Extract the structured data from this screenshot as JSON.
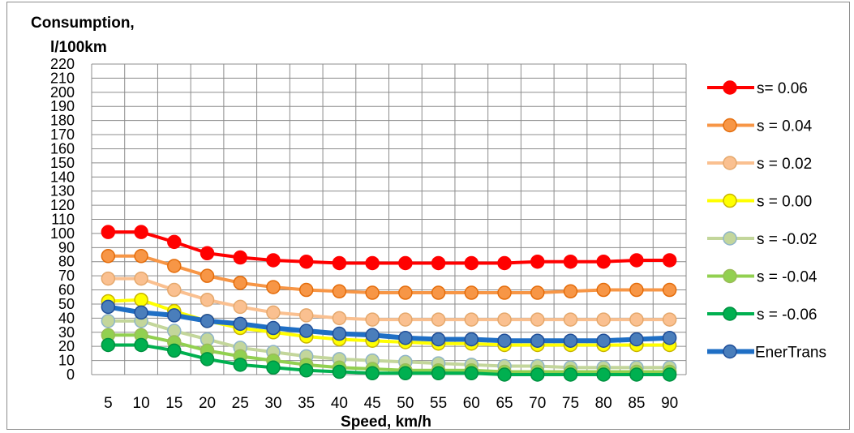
{
  "chart_data": {
    "type": "line",
    "ylabel_line1": "Consumption,",
    "ylabel_line2": "l/100km",
    "xlabel": "Speed, km/h",
    "ylim": [
      0,
      220
    ],
    "yticks": [
      0,
      10,
      20,
      30,
      40,
      50,
      60,
      70,
      80,
      90,
      100,
      110,
      120,
      130,
      140,
      150,
      160,
      170,
      180,
      190,
      200,
      210,
      220
    ],
    "categories": [
      5,
      10,
      15,
      20,
      25,
      30,
      35,
      40,
      45,
      50,
      55,
      60,
      65,
      70,
      75,
      80,
      85,
      90
    ],
    "grid": true,
    "legend_position": "right",
    "series": [
      {
        "name": "s= 0.06",
        "color": "#ff0000",
        "marker_edge": "#ff0000",
        "values": [
          101,
          101,
          94,
          86,
          83,
          81,
          80,
          79,
          79,
          79,
          79,
          79,
          79,
          80,
          80,
          80,
          81,
          81
        ]
      },
      {
        "name": "s = 0.04",
        "color": "#f79646",
        "marker_edge": "#e46c0a",
        "values": [
          84,
          84,
          77,
          70,
          65,
          62,
          60,
          59,
          58,
          58,
          58,
          58,
          58,
          58,
          59,
          60,
          60,
          60
        ]
      },
      {
        "name": "s = 0.02",
        "color": "#fac090",
        "marker_edge": "#e5a86c",
        "values": [
          68,
          68,
          60,
          53,
          48,
          44,
          42,
          40,
          39,
          39,
          39,
          39,
          39,
          39,
          39,
          39,
          39,
          39
        ]
      },
      {
        "name": "s = 0.00",
        "color": "#ffff00",
        "marker_edge": "#c9b400",
        "values": [
          52,
          53,
          45,
          38,
          33,
          30,
          27,
          25,
          24,
          23,
          22,
          22,
          21,
          21,
          21,
          21,
          21,
          21
        ]
      },
      {
        "name": "s = -0.02",
        "color": "#c3d69b",
        "marker_edge": "#8eb4c8",
        "values": [
          38,
          38,
          31,
          25,
          19,
          16,
          13,
          11,
          10,
          9,
          8,
          7,
          6,
          6,
          5,
          5,
          5,
          5
        ]
      },
      {
        "name": "s = -0.04",
        "color": "#92d050",
        "marker_edge": "#9bbb59",
        "values": [
          28,
          28,
          23,
          17,
          13,
          10,
          7,
          5,
          4,
          3,
          3,
          3,
          2,
          2,
          2,
          2,
          2,
          2
        ]
      },
      {
        "name": "s = -0.06",
        "color": "#00b050",
        "marker_edge": "#009040",
        "values": [
          21,
          21,
          17,
          11,
          7,
          5,
          3,
          2,
          1,
          1,
          1,
          1,
          0,
          0,
          0,
          0,
          0,
          0
        ]
      },
      {
        "name": "EnerTrans",
        "color": "#1f6fc5",
        "marker_edge": "#1f4e99",
        "marker_fill": "#4a7ebb",
        "values": [
          48,
          44,
          42,
          38,
          36,
          33,
          31,
          29,
          28,
          26,
          25,
          25,
          24,
          24,
          24,
          24,
          25,
          26
        ]
      }
    ]
  }
}
